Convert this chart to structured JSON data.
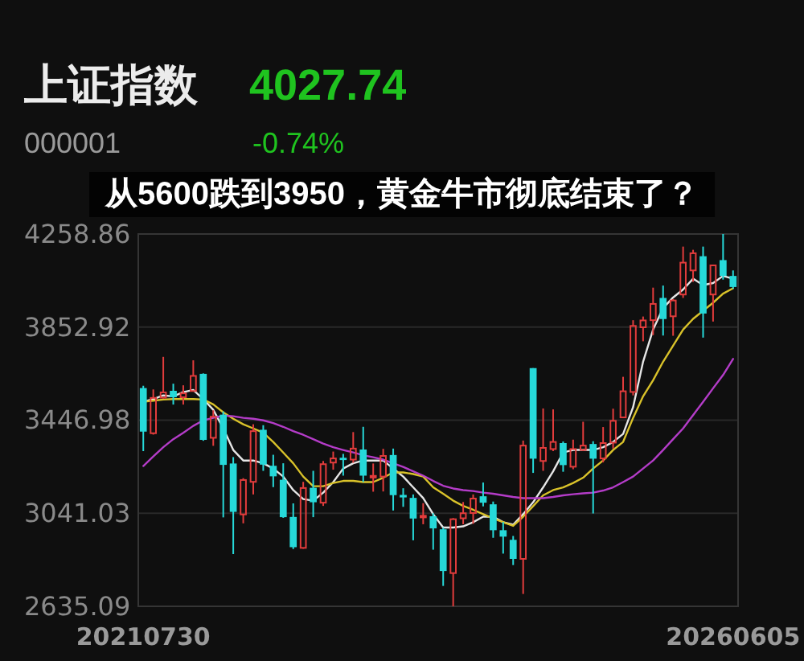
{
  "chart_data": {
    "type": "candlestick",
    "title": "上证指数",
    "subtitle": "000001",
    "annotations": [
      "4027.74",
      "-0.74%",
      "从5600跌到3950，黄金牛市彻底结束了？"
    ],
    "categories": [
      "20210730",
      null,
      null,
      null,
      null,
      null,
      null,
      null,
      null,
      null,
      null,
      null,
      null,
      null,
      null,
      null,
      null,
      null,
      null,
      null,
      null,
      null,
      null,
      null,
      null,
      null,
      null,
      null,
      null,
      null,
      null,
      null,
      null,
      null,
      null,
      null,
      null,
      null,
      null,
      null,
      null,
      null,
      null,
      null,
      null,
      null,
      null,
      null,
      null,
      null,
      null,
      null,
      null,
      null,
      null,
      null,
      null,
      null,
      null,
      "20260605"
    ],
    "ohlc": [
      [
        3587,
        3597,
        3312,
        3397
      ],
      [
        3390,
        3581,
        3384,
        3544
      ],
      [
        3545,
        3723,
        3541,
        3568
      ],
      [
        3575,
        3606,
        3515,
        3547
      ],
      [
        3547,
        3599,
        3515,
        3564
      ],
      [
        3574,
        3708,
        3572,
        3640
      ],
      [
        3649,
        3651,
        3357,
        3361
      ],
      [
        3370,
        3490,
        3335,
        3462
      ],
      [
        3471,
        3485,
        3023,
        3252
      ],
      [
        3258,
        3286,
        2863,
        3047
      ],
      [
        3036,
        3194,
        2997,
        3186
      ],
      [
        3178,
        3429,
        3123,
        3399
      ],
      [
        3405,
        3425,
        3226,
        3253
      ],
      [
        3248,
        3296,
        3155,
        3202
      ],
      [
        3187,
        3259,
        3021,
        3024
      ],
      [
        3025,
        3084,
        2885,
        2893
      ],
      [
        2890,
        3178,
        2886,
        3151
      ],
      [
        3152,
        3226,
        3024,
        3089
      ],
      [
        3087,
        3269,
        3073,
        3255
      ],
      [
        3262,
        3310,
        3231,
        3280
      ],
      [
        3283,
        3300,
        3205,
        3273
      ],
      [
        3275,
        3395,
        3261,
        3323
      ],
      [
        3319,
        3418,
        3177,
        3205
      ],
      [
        3199,
        3258,
        3135,
        3202
      ],
      [
        3201,
        3322,
        3136,
        3291
      ],
      [
        3295,
        3323,
        3053,
        3120
      ],
      [
        3121,
        3150,
        3069,
        3110
      ],
      [
        3108,
        3123,
        2923,
        3018
      ],
      [
        3023,
        3085,
        2993,
        3030
      ],
      [
        3028,
        3041,
        2882,
        2975
      ],
      [
        2971,
        2978,
        2724,
        2789
      ],
      [
        2780,
        3020,
        2635.09,
        3015
      ],
      [
        3019,
        3090,
        2993,
        3041
      ],
      [
        3042,
        3123,
        2995,
        3105
      ],
      [
        3115,
        3175,
        3071,
        3087
      ],
      [
        3080,
        3092,
        2934,
        2967
      ],
      [
        2967,
        3003,
        2865,
        2939
      ],
      [
        2925,
        2942,
        2815,
        2842
      ],
      [
        2842,
        3358,
        2689,
        3336
      ],
      [
        3674,
        3674,
        3217,
        3279
      ],
      [
        3269,
        3498,
        3226,
        3326
      ],
      [
        3321,
        3494,
        3312,
        3352
      ],
      [
        3347,
        3354,
        3222,
        3251
      ],
      [
        3244,
        3362,
        3233,
        3321
      ],
      [
        3317,
        3440,
        3313,
        3336
      ],
      [
        3343,
        3355,
        3040,
        3279
      ],
      [
        3280,
        3417,
        3263,
        3347
      ],
      [
        3349,
        3497,
        3323,
        3444
      ],
      [
        3459,
        3636,
        3456,
        3573
      ],
      [
        3570,
        3883,
        3555,
        3858
      ],
      [
        3852,
        3899,
        3791,
        3882
      ],
      [
        3883,
        4025,
        3818,
        3954
      ],
      [
        3980,
        4034,
        3816,
        3888
      ],
      [
        3900,
        3975,
        3815,
        3969
      ],
      [
        3995,
        4204,
        3980,
        4134
      ],
      [
        4100,
        4190,
        4050,
        4175
      ],
      [
        4162,
        4204,
        3807,
        3912
      ],
      [
        3995,
        4125,
        3877,
        4122
      ],
      [
        4145,
        4258.86,
        4060,
        4076
      ],
      [
        4076,
        4100,
        4020,
        4027.74
      ]
    ],
    "colors": [
      "#26d9d9",
      "#e23c3c",
      "#e23c3c",
      "#26d9d9",
      "#e23c3c",
      "#e23c3c",
      "#26d9d9",
      "#e23c3c",
      "#26d9d9",
      "#26d9d9",
      "#e23c3c",
      "#e23c3c",
      "#26d9d9",
      "#26d9d9",
      "#26d9d9",
      "#26d9d9",
      "#e23c3c",
      "#26d9d9",
      "#e23c3c",
      "#e23c3c",
      "#26d9d9",
      "#e23c3c",
      "#26d9d9",
      "#e23c3c",
      "#e23c3c",
      "#26d9d9",
      "#26d9d9",
      "#26d9d9",
      "#e23c3c",
      "#26d9d9",
      "#26d9d9",
      "#e23c3c",
      "#e23c3c",
      "#e23c3c",
      "#26d9d9",
      "#26d9d9",
      "#26d9d9",
      "#26d9d9",
      "#e23c3c",
      "#26d9d9",
      "#e23c3c",
      "#e23c3c",
      "#26d9d9",
      "#e23c3c",
      "#e23c3c",
      "#26d9d9",
      "#e23c3c",
      "#e23c3c",
      "#e23c3c",
      "#e23c3c",
      "#e23c3c",
      "#e23c3c",
      "#26d9d9",
      "#e23c3c",
      "#e23c3c",
      "#e23c3c",
      "#26d9d9",
      "#e23c3c",
      "#26d9d9",
      "#26d9d9"
    ],
    "series": [
      {
        "type": "line",
        "color": "#e6e6e6",
        "values": [
          3527,
          3539,
          3555,
          3551,
          3569,
          3579,
          3539,
          3492,
          3411,
          3317,
          3271,
          3271,
          3259,
          3236,
          3201,
          3142,
          3103,
          3096,
          3131,
          3177,
          3236,
          3259,
          3271,
          3271,
          3271,
          3236,
          3201,
          3154,
          3107,
          3037,
          2979,
          2979,
          2984,
          3002,
          3026,
          3026,
          3002,
          2991,
          3037,
          3089,
          3154,
          3224,
          3306,
          3317,
          3317,
          3317,
          3329,
          3352,
          3387,
          3504,
          3702,
          3842,
          3936,
          3982,
          4017,
          4064,
          4036,
          4045,
          4076,
          4064
        ]
      },
      {
        "type": "line",
        "color": "#d9c22a",
        "values": [
          3527,
          3532,
          3537,
          3539,
          3539,
          3539,
          3537,
          3516,
          3481,
          3453,
          3429,
          3411,
          3392,
          3352,
          3306,
          3259,
          3201,
          3159,
          3159,
          3173,
          3182,
          3182,
          3177,
          3177,
          3196,
          3219,
          3219,
          3212,
          3201,
          3154,
          3126,
          3096,
          3073,
          3056,
          3037,
          3019,
          3002,
          2986,
          3026,
          3072,
          3119,
          3142,
          3154,
          3173,
          3196,
          3236,
          3271,
          3317,
          3352,
          3457,
          3551,
          3621,
          3702,
          3772,
          3842,
          3889,
          3924,
          3959,
          3999,
          4022
        ]
      },
      {
        "type": "line",
        "color": "#b43cc8",
        "values": [
          3247,
          3289,
          3329,
          3364,
          3392,
          3422,
          3446,
          3457,
          3467,
          3464,
          3457,
          3453,
          3446,
          3434,
          3418,
          3399,
          3383,
          3364,
          3345,
          3329,
          3317,
          3306,
          3294,
          3285,
          3275,
          3259,
          3243,
          3224,
          3205,
          3182,
          3161,
          3149,
          3142,
          3138,
          3131,
          3126,
          3119,
          3112,
          3107,
          3107,
          3107,
          3112,
          3119,
          3124,
          3128,
          3131,
          3140,
          3154,
          3177,
          3201,
          3236,
          3271,
          3317,
          3364,
          3411,
          3469,
          3527,
          3586,
          3644,
          3714
        ]
      }
    ],
    "ylim": [
      2635.09,
      4258.86
    ],
    "yticks": [
      2635.09,
      3041.03,
      3446.98,
      3852.92,
      4258.86
    ],
    "grid": "y"
  }
}
